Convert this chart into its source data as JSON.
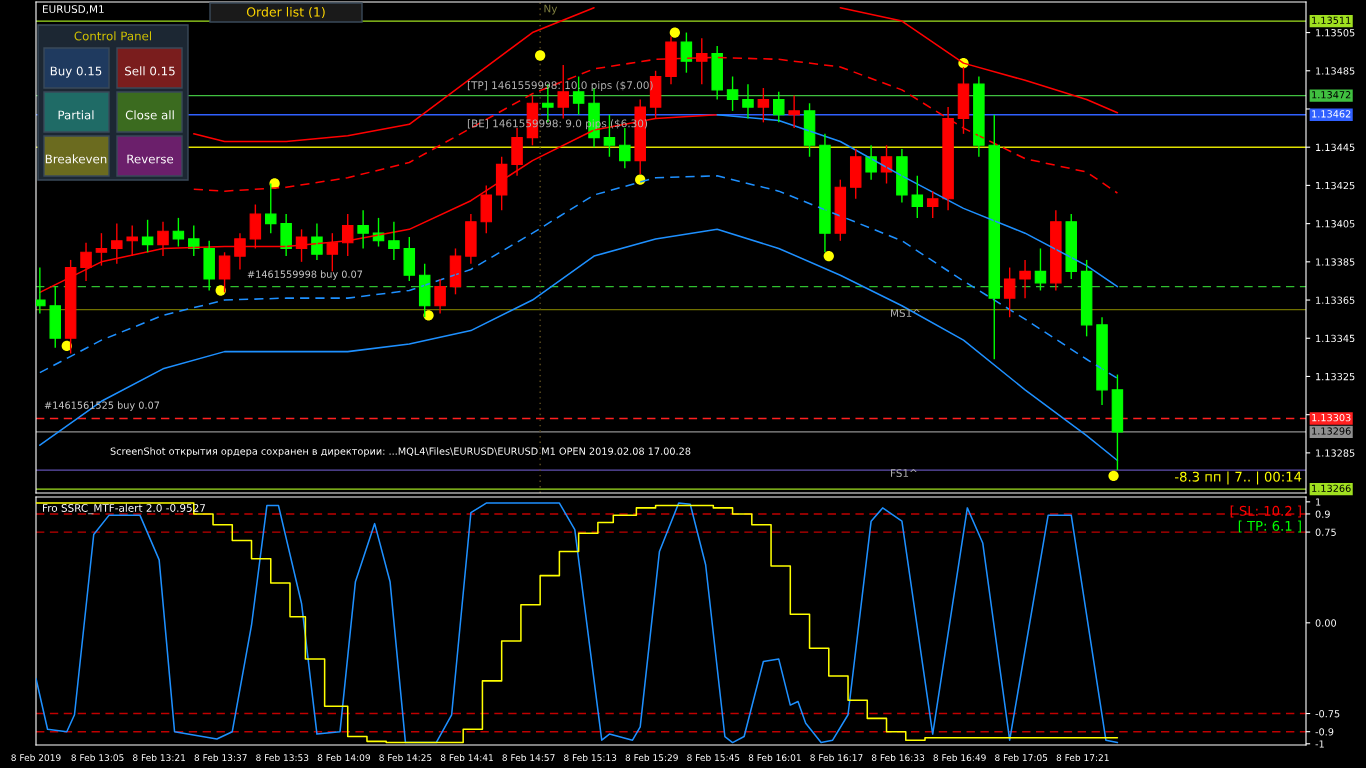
{
  "chart_data": [
    {
      "type": "candlestick",
      "title": "EURUSD,M1",
      "x": [
        "2019-02-08T12:50",
        "2019-02-08T12:54",
        "2019-02-08T12:58",
        "2019-02-08T13:02",
        "2019-02-08T13:06",
        "2019-02-08T13:10",
        "2019-02-08T13:14",
        "2019-02-08T13:18",
        "2019-02-08T13:22",
        "2019-02-08T13:26",
        "2019-02-08T13:30",
        "2019-02-08T13:34",
        "2019-02-08T13:38",
        "2019-02-08T13:42",
        "2019-02-08T13:46",
        "2019-02-08T13:50",
        "2019-02-08T13:54",
        "2019-02-08T13:58",
        "2019-02-08T14:02",
        "2019-02-08T14:06",
        "2019-02-08T14:10",
        "2019-02-08T14:14",
        "2019-02-08T14:18",
        "2019-02-08T14:22",
        "2019-02-08T14:26",
        "2019-02-08T14:30",
        "2019-02-08T14:34",
        "2019-02-08T14:38",
        "2019-02-08T14:42",
        "2019-02-08T14:46",
        "2019-02-08T14:50",
        "2019-02-08T14:54",
        "2019-02-08T14:58",
        "2019-02-08T15:02",
        "2019-02-08T15:06",
        "2019-02-08T15:10",
        "2019-02-08T15:14",
        "2019-02-08T15:18",
        "2019-02-08T15:22",
        "2019-02-08T15:26",
        "2019-02-08T15:30",
        "2019-02-08T15:34",
        "2019-02-08T15:38",
        "2019-02-08T15:42",
        "2019-02-08T15:46",
        "2019-02-08T15:50",
        "2019-02-08T15:54",
        "2019-02-08T15:58",
        "2019-02-08T16:02",
        "2019-02-08T16:06",
        "2019-02-08T16:10",
        "2019-02-08T16:14",
        "2019-02-08T16:18",
        "2019-02-08T16:22",
        "2019-02-08T16:26",
        "2019-02-08T16:30",
        "2019-02-08T16:34",
        "2019-02-08T16:38",
        "2019-02-08T16:42",
        "2019-02-08T16:46",
        "2019-02-08T16:50",
        "2019-02-08T16:54",
        "2019-02-08T16:58",
        "2019-02-08T17:02",
        "2019-02-08T17:06",
        "2019-02-08T17:10",
        "2019-02-08T17:14",
        "2019-02-08T17:18",
        "2019-02-08T17:22",
        "2019-02-08T17:26",
        "2019-02-08T17:30"
      ],
      "ohlc": [
        [
          1.13365,
          1.13382,
          1.13358,
          1.13362
        ],
        [
          1.13362,
          1.13372,
          1.1334,
          1.13345
        ],
        [
          1.13345,
          1.13386,
          1.13337,
          1.13382
        ],
        [
          1.13382,
          1.13395,
          1.13375,
          1.1339
        ],
        [
          1.1339,
          1.134,
          1.13383,
          1.13392
        ],
        [
          1.13392,
          1.13405,
          1.13384,
          1.13396
        ],
        [
          1.13396,
          1.13404,
          1.13388,
          1.13398
        ],
        [
          1.13398,
          1.13407,
          1.1339,
          1.13394
        ],
        [
          1.13394,
          1.13406,
          1.13388,
          1.13401
        ],
        [
          1.13401,
          1.13408,
          1.13393,
          1.13397
        ],
        [
          1.13397,
          1.13404,
          1.13388,
          1.13392
        ],
        [
          1.13392,
          1.13396,
          1.1337,
          1.13376
        ],
        [
          1.13376,
          1.1339,
          1.13369,
          1.13388
        ],
        [
          1.13388,
          1.134,
          1.13381,
          1.13397
        ],
        [
          1.13397,
          1.13415,
          1.13392,
          1.1341
        ],
        [
          1.1341,
          1.13426,
          1.134,
          1.13405
        ],
        [
          1.13405,
          1.1341,
          1.13388,
          1.13392
        ],
        [
          1.13392,
          1.13402,
          1.13385,
          1.13398
        ],
        [
          1.13398,
          1.13405,
          1.13386,
          1.13389
        ],
        [
          1.13389,
          1.134,
          1.1338,
          1.13395
        ],
        [
          1.13395,
          1.1341,
          1.13388,
          1.13404
        ],
        [
          1.13404,
          1.13412,
          1.13392,
          1.134
        ],
        [
          1.134,
          1.13408,
          1.13393,
          1.13396
        ],
        [
          1.13396,
          1.13406,
          1.13386,
          1.13392
        ],
        [
          1.13392,
          1.13398,
          1.13375,
          1.13378
        ],
        [
          1.13378,
          1.13384,
          1.13356,
          1.13362
        ],
        [
          1.13362,
          1.13376,
          1.13358,
          1.13372
        ],
        [
          1.13372,
          1.13392,
          1.13368,
          1.13388
        ],
        [
          1.13388,
          1.1341,
          1.13384,
          1.13406
        ],
        [
          1.13406,
          1.13425,
          1.134,
          1.1342
        ],
        [
          1.1342,
          1.1344,
          1.13412,
          1.13436
        ],
        [
          1.13436,
          1.13455,
          1.1343,
          1.1345
        ],
        [
          1.1345,
          1.13472,
          1.13446,
          1.13468
        ],
        [
          1.13468,
          1.13478,
          1.13458,
          1.13466
        ],
        [
          1.13466,
          1.13488,
          1.1346,
          1.13474
        ],
        [
          1.13474,
          1.13482,
          1.13462,
          1.13468
        ],
        [
          1.13468,
          1.13476,
          1.13445,
          1.1345
        ],
        [
          1.1345,
          1.13462,
          1.1344,
          1.13446
        ],
        [
          1.13446,
          1.13455,
          1.13434,
          1.13438
        ],
        [
          1.13438,
          1.1347,
          1.13431,
          1.13466
        ],
        [
          1.13466,
          1.13485,
          1.1346,
          1.13482
        ],
        [
          1.13482,
          1.13503,
          1.13478,
          1.135
        ],
        [
          1.135,
          1.13505,
          1.13484,
          1.1349
        ],
        [
          1.1349,
          1.13502,
          1.13478,
          1.13494
        ],
        [
          1.13494,
          1.13498,
          1.1347,
          1.13475
        ],
        [
          1.13475,
          1.13482,
          1.13464,
          1.1347
        ],
        [
          1.1347,
          1.13478,
          1.1346,
          1.13466
        ],
        [
          1.13466,
          1.13476,
          1.13458,
          1.1347
        ],
        [
          1.1347,
          1.13474,
          1.13458,
          1.13462
        ],
        [
          1.13462,
          1.13472,
          1.13455,
          1.13464
        ],
        [
          1.13464,
          1.13468,
          1.1344,
          1.13446
        ],
        [
          1.13446,
          1.13452,
          1.1339,
          1.134
        ],
        [
          1.134,
          1.13428,
          1.13396,
          1.13424
        ],
        [
          1.13424,
          1.13444,
          1.13418,
          1.1344
        ],
        [
          1.1344,
          1.13446,
          1.13428,
          1.13432
        ],
        [
          1.13432,
          1.13446,
          1.13426,
          1.1344
        ],
        [
          1.1344,
          1.13444,
          1.13416,
          1.1342
        ],
        [
          1.1342,
          1.1343,
          1.13408,
          1.13414
        ],
        [
          1.13414,
          1.13422,
          1.13408,
          1.13418
        ],
        [
          1.13418,
          1.13466,
          1.13412,
          1.1346
        ],
        [
          1.1346,
          1.13487,
          1.13452,
          1.13478
        ],
        [
          1.13478,
          1.13482,
          1.1344,
          1.13446
        ],
        [
          1.13446,
          1.13462,
          1.13334,
          1.13366
        ],
        [
          1.13366,
          1.13382,
          1.13356,
          1.13376
        ],
        [
          1.13376,
          1.13386,
          1.13366,
          1.1338
        ],
        [
          1.1338,
          1.13392,
          1.1337,
          1.13374
        ],
        [
          1.13374,
          1.13412,
          1.1337,
          1.13406
        ],
        [
          1.13406,
          1.1341,
          1.13376,
          1.1338
        ],
        [
          1.1338,
          1.13386,
          1.13346,
          1.13352
        ],
        [
          1.13352,
          1.13356,
          1.1331,
          1.13318
        ],
        [
          1.13318,
          1.13326,
          1.13276,
          1.13296
        ]
      ],
      "colors": [
        "#00ff00",
        "#00ff00",
        "#ff0000",
        "#ff0000",
        "#ff0000",
        "#ff0000",
        "#ff0000",
        "#00ff00",
        "#ff0000",
        "#00ff00",
        "#00ff00",
        "#00ff00",
        "#ff0000",
        "#ff0000",
        "#ff0000",
        "#00ff00",
        "#00ff00",
        "#ff0000",
        "#00ff00",
        "#ff0000",
        "#ff0000",
        "#00ff00",
        "#00ff00",
        "#00ff00",
        "#00ff00",
        "#00ff00",
        "#ff0000",
        "#ff0000",
        "#ff0000",
        "#ff0000",
        "#ff0000",
        "#ff0000",
        "#ff0000",
        "#00ff00",
        "#ff0000",
        "#00ff00",
        "#00ff00",
        "#00ff00",
        "#00ff00",
        "#ff0000",
        "#ff0000",
        "#ff0000",
        "#00ff00",
        "#ff0000",
        "#00ff00",
        "#00ff00",
        "#00ff00",
        "#ff0000",
        "#00ff00",
        "#ff0000",
        "#00ff00",
        "#00ff00",
        "#ff0000",
        "#ff0000",
        "#00ff00",
        "#ff0000",
        "#00ff00",
        "#00ff00",
        "#ff0000",
        "#ff0000",
        "#ff0000",
        "#00ff00",
        "#00ff00",
        "#ff0000",
        "#ff0000",
        "#00ff00",
        "#ff0000",
        "#00ff00",
        "#00ff00",
        "#00ff00",
        "#00ff00"
      ],
      "series": [
        {
          "type": "line",
          "color": "#ff0000",
          "x": [
            "2019-02-08T13:30",
            "2019-02-08T13:38",
            "2019-02-08T13:54",
            "2019-02-08T14:10",
            "2019-02-08T14:26",
            "2019-02-08T14:42",
            "2019-02-08T14:58",
            "2019-02-08T15:14",
            "2019-02-08T15:30",
            "2019-02-08T15:46",
            "2019-02-08T16:02",
            "2019-02-08T16:18",
            "2019-02-08T16:34",
            "2019-02-08T16:50",
            "2019-02-08T17:06",
            "2019-02-08T17:22",
            "2019-02-08T17:30"
          ],
          "values": [
            1.13452,
            1.13448,
            1.13448,
            1.13451,
            1.13457,
            1.13481,
            1.13505,
            1.13518,
            null,
            null,
            null,
            1.13518,
            1.13511,
            1.13489,
            1.1348,
            1.1347,
            1.13463
          ]
        },
        {
          "type": "line",
          "color": "#ff0000",
          "line_style": "dashed",
          "x": [
            "2019-02-08T13:30",
            "2019-02-08T13:38",
            "2019-02-08T13:54",
            "2019-02-08T14:10",
            "2019-02-08T14:26",
            "2019-02-08T14:42",
            "2019-02-08T14:58",
            "2019-02-08T15:14",
            "2019-02-08T15:30",
            "2019-02-08T15:46",
            "2019-02-08T16:02",
            "2019-02-08T16:18",
            "2019-02-08T16:34",
            "2019-02-08T16:50",
            "2019-02-08T17:06",
            "2019-02-08T17:22",
            "2019-02-08T17:30"
          ],
          "values": [
            1.13423,
            1.13422,
            1.13424,
            1.13429,
            1.13437,
            1.13455,
            1.13473,
            1.13486,
            1.13491,
            1.13492,
            1.13491,
            1.13487,
            1.13475,
            1.13455,
            1.13439,
            1.13432,
            1.13421
          ]
        },
        {
          "type": "line",
          "color": "#ff0000",
          "x": [
            "2019-02-08T12:50",
            "2019-02-08T13:06",
            "2019-02-08T13:22",
            "2019-02-08T13:38",
            "2019-02-08T13:54",
            "2019-02-08T14:10",
            "2019-02-08T14:26",
            "2019-02-08T14:42",
            "2019-02-08T14:58",
            "2019-02-08T15:14",
            "2019-02-08T15:30",
            "2019-02-08T15:46"
          ],
          "values": [
            1.13369,
            1.13385,
            1.13392,
            1.13393,
            1.13393,
            1.13396,
            1.13402,
            1.13417,
            1.13438,
            1.13454,
            1.1346,
            1.13462
          ]
        },
        {
          "type": "line",
          "color": "#1e90ff",
          "x": [
            "2019-02-08T15:46",
            "2019-02-08T16:02",
            "2019-02-08T16:18",
            "2019-02-08T16:34",
            "2019-02-08T16:50",
            "2019-02-08T17:06",
            "2019-02-08T17:22",
            "2019-02-08T17:30"
          ],
          "values": [
            1.13462,
            1.13459,
            1.13448,
            1.1343,
            1.13413,
            1.134,
            1.13383,
            1.13372
          ]
        },
        {
          "type": "line",
          "color": "#1e90ff",
          "line_style": "dashed",
          "x": [
            "2019-02-08T12:50",
            "2019-02-08T13:06",
            "2019-02-08T13:22",
            "2019-02-08T13:38",
            "2019-02-08T13:54",
            "2019-02-08T14:10",
            "2019-02-08T14:26",
            "2019-02-08T14:42",
            "2019-02-08T14:58",
            "2019-02-08T15:14",
            "2019-02-08T15:30",
            "2019-02-08T15:46",
            "2019-02-08T16:02",
            "2019-02-08T16:18",
            "2019-02-08T16:34",
            "2019-02-08T16:50",
            "2019-02-08T17:06",
            "2019-02-08T17:22",
            "2019-02-08T17:30"
          ],
          "values": [
            1.13327,
            1.13344,
            1.13357,
            1.13365,
            1.13366,
            1.13366,
            1.1337,
            1.13381,
            1.134,
            1.1342,
            1.13429,
            1.1343,
            1.13422,
            1.13409,
            1.13396,
            1.13375,
            1.13355,
            1.13334,
            1.13324
          ]
        },
        {
          "type": "line",
          "color": "#1e90ff",
          "x": [
            "2019-02-08T12:50",
            "2019-02-08T13:06",
            "2019-02-08T13:22",
            "2019-02-08T13:38",
            "2019-02-08T13:54",
            "2019-02-08T14:10",
            "2019-02-08T14:26",
            "2019-02-08T14:42",
            "2019-02-08T14:58",
            "2019-02-08T15:14",
            "2019-02-08T15:30",
            "2019-02-08T15:46",
            "2019-02-08T16:02",
            "2019-02-08T16:18",
            "2019-02-08T16:34",
            "2019-02-08T16:50",
            "2019-02-08T17:06",
            "2019-02-08T17:22",
            "2019-02-08T17:30"
          ],
          "values": [
            1.13289,
            1.13312,
            1.13329,
            1.13338,
            1.13338,
            1.13338,
            1.13342,
            1.13349,
            1.13365,
            1.13388,
            1.13397,
            1.13402,
            1.13392,
            1.13378,
            1.13362,
            1.13344,
            1.13318,
            1.13294,
            1.13281
          ]
        },
        {
          "type": "scatter",
          "color": "#ffff00",
          "marker": "circle",
          "x": [
            "2019-02-08T12:57",
            "2019-02-08T13:37",
            "2019-02-08T13:51",
            "2019-02-08T14:31",
            "2019-02-08T15:00",
            "2019-02-08T15:26",
            "2019-02-08T15:35",
            "2019-02-08T16:15",
            "2019-02-08T16:50",
            "2019-02-08T17:29"
          ],
          "values": [
            1.13341,
            1.1337,
            1.13426,
            1.13357,
            1.13493,
            1.13428,
            1.13505,
            1.13388,
            1.13489,
            1.13273
          ]
        }
      ],
      "ref_lines": [
        {
          "axis": "y",
          "value": 1.13511,
          "label": "1.13511",
          "color": "#a0e020"
        },
        {
          "axis": "y",
          "value": 1.13472,
          "label": "1.13472",
          "color": "#40c040"
        },
        {
          "axis": "y",
          "value": 1.13462,
          "label": "1.13462",
          "color": "#3060ff"
        },
        {
          "axis": "y",
          "value": 1.13445,
          "color": "#e0e000"
        },
        {
          "axis": "y",
          "value": 1.13372,
          "color": "#30c030",
          "line_style": "dashed"
        },
        {
          "axis": "y",
          "value": 1.1336,
          "color": "#707000"
        },
        {
          "axis": "y",
          "value": 1.13303,
          "label": "1.13303",
          "color": "#ff2020",
          "line_style": "dashed"
        },
        {
          "axis": "y",
          "value": 1.13296,
          "label": "1.13296",
          "color": "#909090"
        },
        {
          "axis": "y",
          "value": 1.13276,
          "color": "#6050b0"
        },
        {
          "axis": "y",
          "value": 1.13266,
          "label": "1.13266",
          "color": "#a0e020"
        },
        {
          "axis": "x",
          "value": "2019-02-08T15:00",
          "label": "Ny",
          "color": "#605020",
          "line_style": "dotted"
        }
      ],
      "annotations": [
        "Order list (1)",
        "Control Panel",
        "Buy 0.15",
        "Sell 0.15",
        "Partial",
        "Close all",
        "Breakeven",
        "Reverse",
        "ScreenShot открытия ордера сохранен в директории: ...MQL4\\Files\\EURUSD\\EURUSD M1 OPEN 2019.02.08 17.00.28",
        "-8.3 пп | 7.. | 00:14",
        "#1461559998 buy 0.07",
        "#1461561525 buy 0.07",
        "MS1^",
        "FS1^",
        {
          "text": "[TP] 1461559998: 10.0 pips ($7.00)",
          "x": "2019-02-08T14:41",
          "y": 1.13477
        },
        {
          "text": "[BE] 1461559998: 9.0 pips ($6.30)",
          "x": "2019-02-08T14:41",
          "y": 1.13457
        }
      ],
      "xlim": [
        "2019-02-08T12:49",
        "2019-02-08T18:19"
      ],
      "ylim": [
        1.13264,
        1.13521
      ],
      "yticks": [
        1.13505,
        1.13485,
        {
          "value": 1.13465,
          "label": null
        },
        1.13445,
        1.13425,
        1.13405,
        1.13385,
        1.13365,
        1.13345,
        1.13325,
        {
          "value": 1.13305,
          "label": null
        },
        1.13285
      ],
      "tick_labels": "y"
    },
    {
      "type": "line",
      "title": "Fro SSRC_MTF-alert 2.0 -0.9527",
      "series": [
        {
          "type": "line",
          "color": "#1e90ff",
          "x": [
            "2019-02-08T12:49",
            "2019-02-08T12:52",
            "2019-02-08T12:57",
            "2019-02-08T12:59",
            "2019-02-08T13:04",
            "2019-02-08T13:08",
            "2019-02-08T13:16",
            "2019-02-08T13:21",
            "2019-02-08T13:25",
            "2019-02-08T13:36",
            "2019-02-08T13:40",
            "2019-02-08T13:45",
            "2019-02-08T13:49",
            "2019-02-08T13:52",
            "2019-02-08T13:58",
            "2019-02-08T14:02",
            "2019-02-08T14:08",
            "2019-02-08T14:12",
            "2019-02-08T14:17",
            "2019-02-08T14:21",
            "2019-02-08T14:25",
            "2019-02-08T14:33",
            "2019-02-08T14:37",
            "2019-02-08T14:42",
            "2019-02-08T14:46",
            "2019-02-08T15:05",
            "2019-02-08T15:09",
            "2019-02-08T15:16",
            "2019-02-08T15:18",
            "2019-02-08T15:24",
            "2019-02-08T15:26",
            "2019-02-08T15:31",
            "2019-02-08T15:36",
            "2019-02-08T15:39",
            "2019-02-08T15:43",
            "2019-02-08T15:48",
            "2019-02-08T15:50",
            "2019-02-08T15:53",
            "2019-02-08T15:58",
            "2019-02-08T16:02",
            "2019-02-08T16:05",
            "2019-02-08T16:07",
            "2019-02-08T16:09",
            "2019-02-08T16:13",
            "2019-02-08T16:16",
            "2019-02-08T16:20",
            "2019-02-08T16:26",
            "2019-02-08T16:29",
            "2019-02-08T16:34",
            "2019-02-08T16:42",
            "2019-02-08T16:51",
            "2019-02-08T16:55",
            "2019-02-08T17:02",
            "2019-02-08T17:12",
            "2019-02-08T17:18",
            "2019-02-08T17:27",
            "2019-02-08T17:30"
          ],
          "values": [
            -0.46,
            -0.88,
            -0.9,
            -0.76,
            0.73,
            0.89,
            0.89,
            0.52,
            -0.9,
            -0.96,
            -0.9,
            -0.02,
            0.97,
            0.97,
            0.16,
            -0.92,
            -0.9,
            0.34,
            0.82,
            0.34,
            -0.99,
            -0.99,
            -0.76,
            0.91,
            0.99,
            0.99,
            0.77,
            -0.97,
            -0.92,
            -0.97,
            -0.86,
            0.59,
            0.99,
            0.98,
            0.48,
            -0.94,
            -0.99,
            -0.94,
            -0.32,
            -0.3,
            -0.68,
            -0.65,
            -0.83,
            -0.99,
            -0.97,
            -0.76,
            0.84,
            0.95,
            0.84,
            -0.92,
            0.95,
            0.66,
            -0.97,
            0.89,
            0.89,
            -0.97,
            -0.99
          ]
        },
        {
          "type": "step",
          "color": "#ffff00",
          "x": [
            "2019-02-08T12:49",
            "2019-02-08T13:30",
            "2019-02-08T13:35",
            "2019-02-08T13:40",
            "2019-02-08T13:45",
            "2019-02-08T13:50",
            "2019-02-08T13:55",
            "2019-02-08T13:59",
            "2019-02-08T14:04",
            "2019-02-08T14:10",
            "2019-02-08T14:15",
            "2019-02-08T14:20",
            "2019-02-08T14:40",
            "2019-02-08T14:45",
            "2019-02-08T14:50",
            "2019-02-08T14:55",
            "2019-02-08T15:00",
            "2019-02-08T15:05",
            "2019-02-08T15:10",
            "2019-02-08T15:15",
            "2019-02-08T15:19",
            "2019-02-08T15:25",
            "2019-02-08T15:30",
            "2019-02-08T15:45",
            "2019-02-08T15:50",
            "2019-02-08T15:55",
            "2019-02-08T16:00",
            "2019-02-08T16:05",
            "2019-02-08T16:10",
            "2019-02-08T16:15",
            "2019-02-08T16:20",
            "2019-02-08T16:25",
            "2019-02-08T16:30",
            "2019-02-08T16:35",
            "2019-02-08T16:40",
            "2019-02-08T17:30"
          ],
          "values": [
            0.99,
            0.9,
            0.81,
            0.68,
            0.53,
            0.33,
            0.05,
            -0.3,
            -0.69,
            -0.94,
            -0.98,
            -0.99,
            -0.88,
            -0.48,
            -0.15,
            0.15,
            0.39,
            0.59,
            0.74,
            0.83,
            0.89,
            0.95,
            0.97,
            0.95,
            0.9,
            0.81,
            0.47,
            0.07,
            -0.21,
            -0.44,
            -0.64,
            -0.79,
            -0.9,
            -0.97,
            -0.95,
            -0.95
          ]
        }
      ],
      "ref_lines": [
        {
          "axis": "y",
          "value": 0.9,
          "color": "#c00000",
          "line_style": "dashed"
        },
        {
          "axis": "y",
          "value": 0.75,
          "color": "#c00000",
          "line_style": "dashed"
        },
        {
          "axis": "y",
          "value": -0.75,
          "color": "#c00000",
          "line_style": "dashed"
        },
        {
          "axis": "y",
          "value": -0.9,
          "color": "#c00000",
          "line_style": "dashed"
        }
      ],
      "annotations": [
        "[ SL: 10.2 ]",
        "[ TP: 6.1 ]"
      ],
      "xlim": [
        "2019-02-08T12:49",
        "2019-02-08T18:19"
      ],
      "xticks": [
        {
          "value": "2019-02-08T12:49",
          "label": "8 Feb 2019"
        },
        {
          "value": "2019-02-08T13:05",
          "label": "8 Feb 13:05"
        },
        {
          "value": "2019-02-08T13:21",
          "label": "8 Feb 13:21"
        },
        {
          "value": "2019-02-08T13:37",
          "label": "8 Feb 13:37"
        },
        {
          "value": "2019-02-08T13:53",
          "label": "8 Feb 13:53"
        },
        {
          "value": "2019-02-08T14:09",
          "label": "8 Feb 14:09"
        },
        {
          "value": "2019-02-08T14:25",
          "label": "8 Feb 14:25"
        },
        {
          "value": "2019-02-08T14:41",
          "label": "8 Feb 14:41"
        },
        {
          "value": "2019-02-08T14:57",
          "label": "8 Feb 14:57"
        },
        {
          "value": "2019-02-08T15:13",
          "label": "8 Feb 15:13"
        },
        {
          "value": "2019-02-08T15:29",
          "label": "8 Feb 15:29"
        },
        {
          "value": "2019-02-08T15:45",
          "label": "8 Feb 15:45"
        },
        {
          "value": "2019-02-08T16:01",
          "label": "8 Feb 16:01"
        },
        {
          "value": "2019-02-08T16:17",
          "label": "8 Feb 16:17"
        },
        {
          "value": "2019-02-08T16:33",
          "label": "8 Feb 16:33"
        },
        {
          "value": "2019-02-08T16:49",
          "label": "8 Feb 16:49"
        },
        {
          "value": "2019-02-08T17:05",
          "label": "8 Feb 17:05"
        },
        {
          "value": "2019-02-08T17:21",
          "label": "8 Feb 17:21"
        }
      ],
      "ylim": [
        -1.01,
        1.04
      ],
      "yticks": [
        1,
        0.9,
        0.75,
        {
          "value": 0,
          "label": "0.00"
        },
        {
          "value": -0.75,
          "label": "-0.75"
        },
        {
          "value": -0.9,
          "label": "-0.9"
        },
        {
          "value": -1,
          "label": "-1"
        }
      ]
    }
  ]
}
